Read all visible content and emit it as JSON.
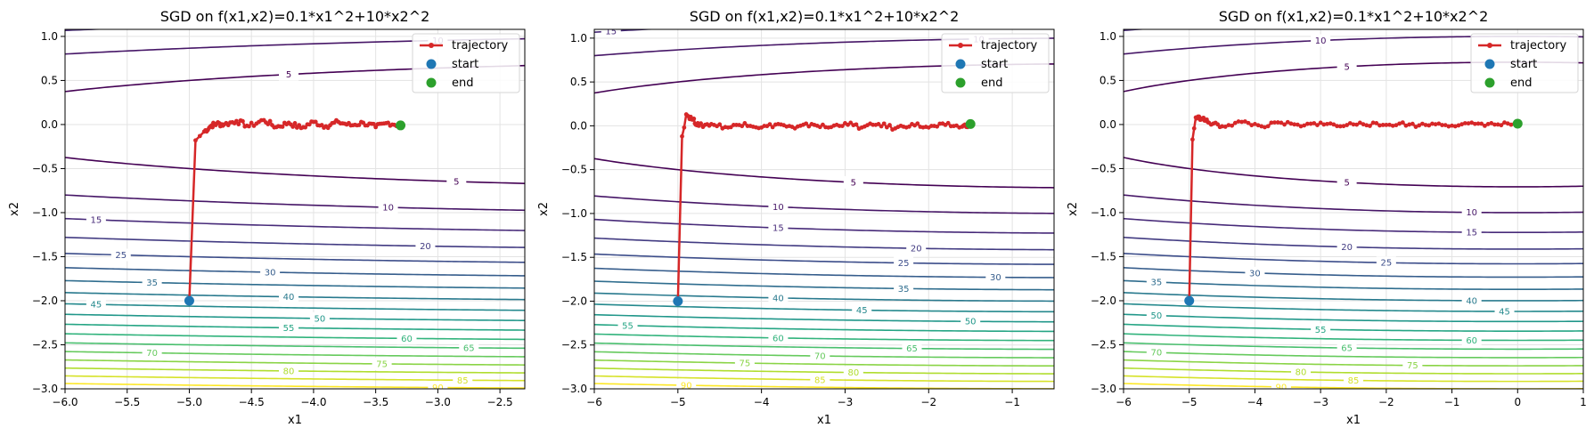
{
  "function": {
    "a": 0.1,
    "b": 10
  },
  "colors": {
    "trajectory": "#d62728",
    "start": "#1f77b4",
    "end": "#2ca02c",
    "grid": "#e3e3e3",
    "legend_border": "#d6d6d6",
    "contour_colormap": "viridis"
  },
  "legend": {
    "placement": "top-right",
    "trajectory": "trajectory",
    "start": "start",
    "end": "end"
  },
  "chart_data": [
    {
      "type": "line",
      "title": "SGD on f(x1,x2)=0.1*x1^2+10*x2^2",
      "xlabel": "x1",
      "ylabel": "x2",
      "xlim": [
        -6,
        -2.3
      ],
      "ylim": [
        -3,
        1.08
      ],
      "xticks": [
        -6.0,
        -5.5,
        -5.0,
        -4.5,
        -4.0,
        -3.5,
        -3.0,
        -2.5
      ],
      "xtick_labels": [
        "−6.0",
        "−5.5",
        "−5.0",
        "−4.5",
        "−4.0",
        "−3.5",
        "−3.0",
        "−2.5"
      ],
      "yticks": [
        -3.0,
        -2.5,
        -2.0,
        -1.5,
        -1.0,
        -0.5,
        0.0,
        0.5,
        1.0
      ],
      "ytick_labels": [
        "−3.0",
        "−2.5",
        "−2.0",
        "−1.5",
        "−1.0",
        "−0.5",
        "0.0",
        "0.5",
        "1.0"
      ],
      "grid": true,
      "contour_levels": [
        5,
        10,
        15,
        20,
        25,
        30,
        35,
        40,
        45,
        50,
        55,
        60,
        65,
        70,
        75,
        80,
        85,
        90
      ],
      "contour_labels": [
        {
          "level": 10,
          "x": -3.0,
          "top": true
        },
        {
          "level": 5,
          "x": -4.2,
          "top": true
        },
        {
          "level": 5,
          "x": -2.85,
          "top": false
        },
        {
          "level": 10,
          "x": -3.4,
          "top": false
        },
        {
          "level": 15,
          "x": -5.75,
          "top": false
        },
        {
          "level": 20,
          "x": -3.1,
          "top": false
        },
        {
          "level": 25,
          "x": -5.55,
          "top": false
        },
        {
          "level": 30,
          "x": -4.35,
          "top": false
        },
        {
          "level": 35,
          "x": -5.3,
          "top": false
        },
        {
          "level": 40,
          "x": -4.2,
          "top": false
        },
        {
          "level": 45,
          "x": -5.75,
          "top": false
        },
        {
          "level": 50,
          "x": -3.95,
          "top": false
        },
        {
          "level": 55,
          "x": -4.2,
          "top": false
        },
        {
          "level": 60,
          "x": -3.25,
          "top": false
        },
        {
          "level": 65,
          "x": -2.75,
          "top": false
        },
        {
          "level": 70,
          "x": -5.3,
          "top": false
        },
        {
          "level": 75,
          "x": -3.45,
          "top": false
        },
        {
          "level": 80,
          "x": -4.2,
          "top": false
        },
        {
          "level": 85,
          "x": -2.8,
          "top": false
        },
        {
          "level": 90,
          "x": -3.0,
          "top": false
        }
      ],
      "start": [
        -5.0,
        -2.0
      ],
      "end": [
        -3.3,
        -0.01
      ],
      "noise": 0.03,
      "trajectory": [
        [
          -5.0,
          -2.0
        ],
        [
          -4.95,
          -0.18
        ],
        [
          -4.88,
          -0.08
        ],
        [
          -4.82,
          -0.01
        ],
        [
          -4.78,
          0.01
        ],
        [
          -4.72,
          0.0
        ],
        [
          -4.62,
          0.04
        ],
        [
          -4.52,
          -0.02
        ],
        [
          -4.4,
          0.05
        ],
        [
          -4.3,
          -0.03
        ],
        [
          -4.2,
          0.02
        ],
        [
          -4.1,
          -0.04
        ],
        [
          -4.0,
          0.03
        ],
        [
          -3.9,
          -0.02
        ],
        [
          -3.8,
          0.03
        ],
        [
          -3.7,
          -0.01
        ],
        [
          -3.6,
          0.02
        ],
        [
          -3.5,
          -0.03
        ],
        [
          -3.4,
          0.02
        ],
        [
          -3.3,
          -0.01
        ]
      ]
    },
    {
      "type": "line",
      "title": "SGD on f(x1,x2)=0.1*x1^2+10*x2^2",
      "xlabel": "x1",
      "ylabel": "x2",
      "xlim": [
        -6,
        -0.5
      ],
      "ylim": [
        -3,
        1.1
      ],
      "xticks": [
        -6,
        -5,
        -4,
        -3,
        -2,
        -1
      ],
      "xtick_labels": [
        "−6",
        "−5",
        "−4",
        "−3",
        "−2",
        "−1"
      ],
      "yticks": [
        -3.0,
        -2.5,
        -2.0,
        -1.5,
        -1.0,
        -0.5,
        0.0,
        0.5,
        1.0
      ],
      "ytick_labels": [
        "−3.0",
        "−2.5",
        "−2.0",
        "−1.5",
        "−1.0",
        "−0.5",
        "0.0",
        "0.5",
        "1.0"
      ],
      "grid": true,
      "contour_levels": [
        5,
        10,
        15,
        20,
        25,
        30,
        35,
        40,
        45,
        50,
        55,
        60,
        65,
        70,
        75,
        80,
        85,
        90
      ],
      "contour_labels": [
        {
          "level": 15,
          "x": -5.8,
          "top": true
        },
        {
          "level": 10,
          "x": -1.4,
          "top": true
        },
        {
          "level": 5,
          "x": -2.9,
          "top": false
        },
        {
          "level": 10,
          "x": -3.8,
          "top": false
        },
        {
          "level": 15,
          "x": -3.8,
          "top": false
        },
        {
          "level": 20,
          "x": -2.15,
          "top": false
        },
        {
          "level": 25,
          "x": -2.3,
          "top": false
        },
        {
          "level": 30,
          "x": -1.2,
          "top": false
        },
        {
          "level": 35,
          "x": -2.3,
          "top": false
        },
        {
          "level": 40,
          "x": -3.8,
          "top": false
        },
        {
          "level": 45,
          "x": -2.8,
          "top": false
        },
        {
          "level": 50,
          "x": -1.5,
          "top": false
        },
        {
          "level": 55,
          "x": -5.6,
          "top": false
        },
        {
          "level": 60,
          "x": -3.8,
          "top": false
        },
        {
          "level": 65,
          "x": -2.2,
          "top": false
        },
        {
          "level": 70,
          "x": -3.3,
          "top": false
        },
        {
          "level": 75,
          "x": -4.2,
          "top": false
        },
        {
          "level": 80,
          "x": -2.9,
          "top": false
        },
        {
          "level": 85,
          "x": -3.3,
          "top": false
        },
        {
          "level": 90,
          "x": -4.9,
          "top": false
        }
      ],
      "start": [
        -5.0,
        -2.0
      ],
      "end": [
        -1.5,
        0.02
      ],
      "noise": 0.025,
      "trajectory": [
        [
          -5.0,
          -2.0
        ],
        [
          -4.95,
          -0.12
        ],
        [
          -4.9,
          0.13
        ],
        [
          -4.82,
          0.07
        ],
        [
          -4.75,
          0.0
        ],
        [
          -4.6,
          0.02
        ],
        [
          -4.4,
          -0.02
        ],
        [
          -4.2,
          0.03
        ],
        [
          -4.0,
          -0.02
        ],
        [
          -3.8,
          0.02
        ],
        [
          -3.6,
          -0.03
        ],
        [
          -3.4,
          0.02
        ],
        [
          -3.2,
          -0.02
        ],
        [
          -3.0,
          0.03
        ],
        [
          -2.8,
          -0.02
        ],
        [
          -2.6,
          0.02
        ],
        [
          -2.4,
          -0.03
        ],
        [
          -2.2,
          0.02
        ],
        [
          -2.0,
          -0.02
        ],
        [
          -1.8,
          0.01
        ],
        [
          -1.6,
          -0.01
        ],
        [
          -1.5,
          0.02
        ]
      ]
    },
    {
      "type": "line",
      "title": "SGD on f(x1,x2)=0.1*x1^2+10*x2^2",
      "xlabel": "x1",
      "ylabel": "x2",
      "xlim": [
        -6,
        1
      ],
      "ylim": [
        -3,
        1.08
      ],
      "xticks": [
        -6,
        -5,
        -4,
        -3,
        -2,
        -1,
        0,
        1
      ],
      "xtick_labels": [
        "−6",
        "−5",
        "−4",
        "−3",
        "−2",
        "−1",
        "0",
        "1"
      ],
      "yticks": [
        -3.0,
        -2.5,
        -2.0,
        -1.5,
        -1.0,
        -0.5,
        0.0,
        0.5,
        1.0
      ],
      "ytick_labels": [
        "−3.0",
        "−2.5",
        "−2.0",
        "−1.5",
        "−1.0",
        "−0.5",
        "0.0",
        "0.5",
        "1.0"
      ],
      "grid": true,
      "contour_levels": [
        5,
        10,
        15,
        20,
        25,
        30,
        35,
        40,
        45,
        50,
        55,
        60,
        65,
        70,
        75,
        80,
        85,
        90
      ],
      "contour_labels": [
        {
          "level": 10,
          "x": -3.0,
          "top": true
        },
        {
          "level": 5,
          "x": -2.6,
          "top": true
        },
        {
          "level": 5,
          "x": -2.6,
          "top": false
        },
        {
          "level": 10,
          "x": -0.7,
          "top": false
        },
        {
          "level": 15,
          "x": -0.7,
          "top": false
        },
        {
          "level": 20,
          "x": -2.6,
          "top": false
        },
        {
          "level": 25,
          "x": -2.0,
          "top": false
        },
        {
          "level": 30,
          "x": -4.0,
          "top": false
        },
        {
          "level": 35,
          "x": -5.5,
          "top": false
        },
        {
          "level": 40,
          "x": -0.7,
          "top": false
        },
        {
          "level": 45,
          "x": -0.2,
          "top": false
        },
        {
          "level": 50,
          "x": -5.5,
          "top": false
        },
        {
          "level": 55,
          "x": -3.0,
          "top": false
        },
        {
          "level": 60,
          "x": -0.7,
          "top": false
        },
        {
          "level": 65,
          "x": -2.6,
          "top": false
        },
        {
          "level": 70,
          "x": -5.5,
          "top": false
        },
        {
          "level": 75,
          "x": -1.6,
          "top": false
        },
        {
          "level": 80,
          "x": -3.3,
          "top": false
        },
        {
          "level": 85,
          "x": -2.5,
          "top": false
        },
        {
          "level": 90,
          "x": -3.6,
          "top": false
        }
      ],
      "start": [
        -5.0,
        -2.0
      ],
      "end": [
        0.0,
        0.01
      ],
      "noise": 0.022,
      "trajectory": [
        [
          -5.0,
          -2.0
        ],
        [
          -4.95,
          -0.17
        ],
        [
          -4.9,
          0.08
        ],
        [
          -4.8,
          0.07
        ],
        [
          -4.7,
          0.02
        ],
        [
          -4.5,
          -0.02
        ],
        [
          -4.2,
          0.03
        ],
        [
          -3.9,
          -0.02
        ],
        [
          -3.6,
          0.02
        ],
        [
          -3.3,
          -0.02
        ],
        [
          -3.0,
          0.02
        ],
        [
          -2.7,
          -0.02
        ],
        [
          -2.4,
          0.02
        ],
        [
          -2.1,
          -0.01
        ],
        [
          -1.8,
          0.01
        ],
        [
          -1.5,
          -0.01
        ],
        [
          -1.2,
          0.01
        ],
        [
          -0.9,
          -0.01
        ],
        [
          -0.6,
          0.01
        ],
        [
          -0.3,
          0.0
        ],
        [
          0.0,
          0.01
        ]
      ]
    }
  ]
}
